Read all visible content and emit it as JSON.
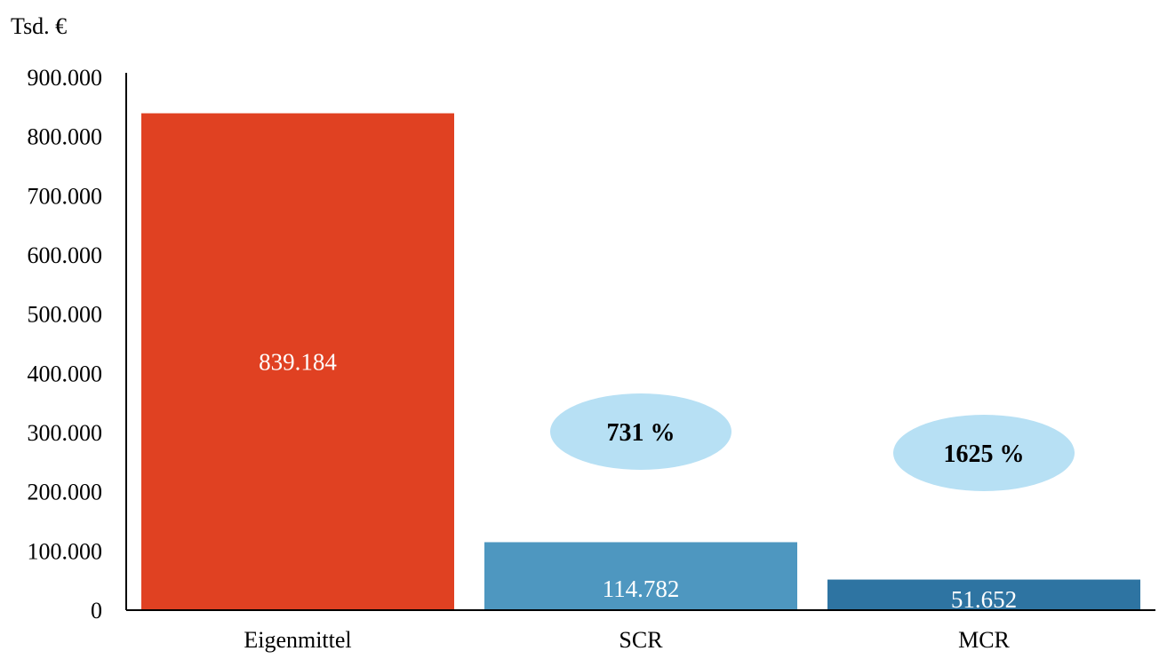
{
  "chart_data": {
    "type": "bar",
    "unit_label": "Tsd. €",
    "categories": [
      "Eigenmittel",
      "SCR",
      "MCR"
    ],
    "values": [
      839184,
      114782,
      51652
    ],
    "value_labels": [
      "839.184",
      "114.782",
      "51.652"
    ],
    "colors": [
      "#e04122",
      "#4e97c0",
      "#2e74a2"
    ],
    "ratios": [
      {
        "category": "SCR",
        "label": "731 %"
      },
      {
        "category": "MCR",
        "label": "1625 %"
      }
    ],
    "ratio_bubble_color": "#b7e0f4",
    "ylim": [
      0,
      900000
    ],
    "yticks": [
      0,
      100000,
      200000,
      300000,
      400000,
      500000,
      600000,
      700000,
      800000,
      900000
    ],
    "ytick_labels": [
      "0",
      "100.000",
      "200.000",
      "300.000",
      "400.000",
      "500.000",
      "600.000",
      "700.000",
      "800.000",
      "900.000"
    ],
    "grid": false,
    "legend": "none"
  }
}
